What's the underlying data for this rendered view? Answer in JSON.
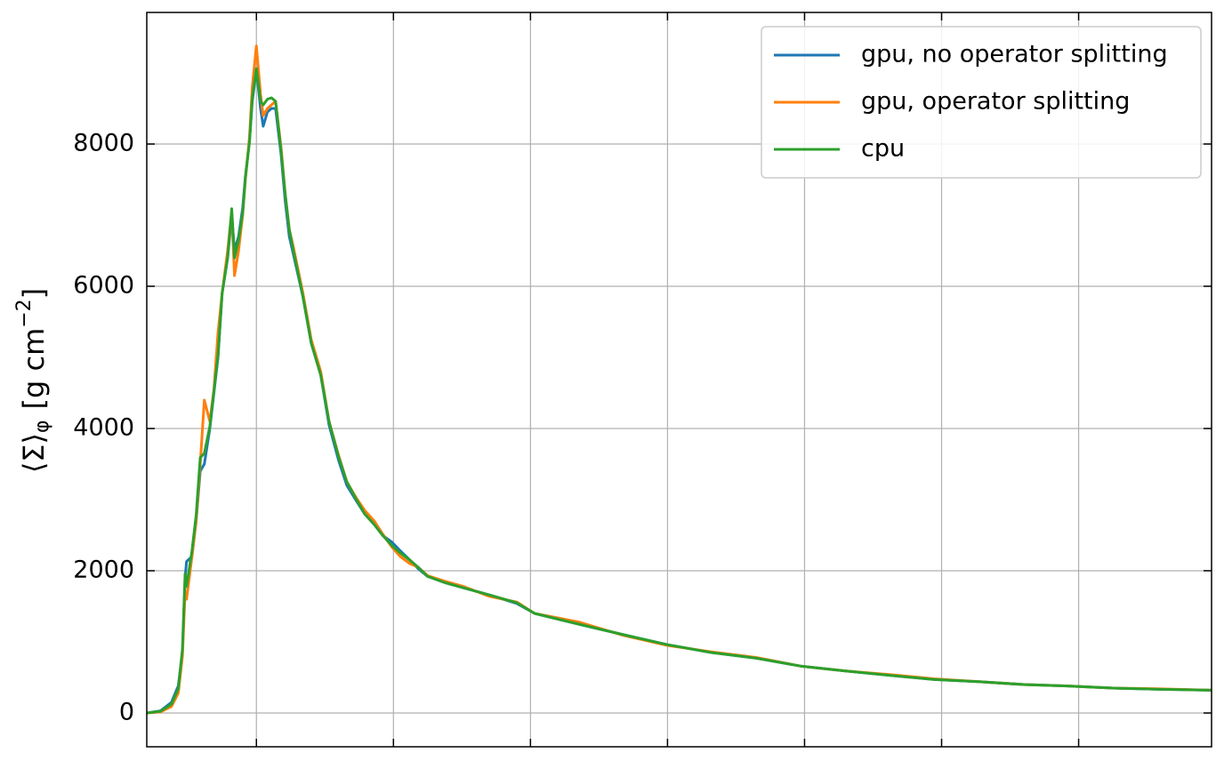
{
  "chart_data": {
    "type": "line",
    "ylabel": {
      "main": "⟨Σ⟩",
      "sub": "φ",
      "unit": "[g cm",
      "sup": "−2",
      "close": "]"
    },
    "x": [
      0.2,
      0.3,
      0.38,
      0.43,
      0.46,
      0.48,
      0.49,
      0.53,
      0.56,
      0.59,
      0.62,
      0.66,
      0.69,
      0.72,
      0.75,
      0.79,
      0.82,
      0.84,
      0.87,
      0.9,
      0.92,
      0.95,
      0.97,
      1.0,
      1.03,
      1.05,
      1.08,
      1.11,
      1.14,
      1.18,
      1.21,
      1.24,
      1.27,
      1.34,
      1.4,
      1.47,
      1.53,
      1.6,
      1.66,
      1.73,
      1.79,
      1.86,
      1.92,
      1.99,
      2.05,
      2.12,
      2.18,
      2.25,
      2.38,
      2.51,
      2.7,
      2.9,
      3.03,
      3.35,
      3.68,
      4.0,
      4.32,
      4.65,
      4.97,
      5.3,
      5.62,
      5.95,
      6.27,
      6.6,
      6.92,
      7.25,
      7.57,
      7.97
    ],
    "series": [
      {
        "name": "gpu, no operator splitting",
        "color": "#1f77b4",
        "values": [
          0,
          30,
          150,
          380,
          850,
          1900,
          2130,
          2200,
          2700,
          3400,
          3500,
          4000,
          4500,
          5000,
          5900,
          6400,
          7000,
          6500,
          6700,
          7100,
          7550,
          8050,
          8600,
          9050,
          8500,
          8250,
          8450,
          8500,
          8500,
          7850,
          7200,
          6700,
          6450,
          5850,
          5200,
          4750,
          4050,
          3550,
          3200,
          2980,
          2800,
          2650,
          2500,
          2400,
          2280,
          2150,
          2030,
          1920,
          1830,
          1760,
          1660,
          1540,
          1400,
          1250,
          1100,
          960,
          850,
          770,
          660,
          590,
          530,
          470,
          440,
          400,
          380,
          350,
          335,
          320
        ]
      },
      {
        "name": "gpu, operator splitting",
        "color": "#ff7f0e",
        "values": [
          0,
          15,
          90,
          280,
          800,
          1700,
          1600,
          2200,
          2700,
          3500,
          4400,
          4100,
          4550,
          5350,
          5900,
          6500,
          7050,
          6150,
          6500,
          7000,
          7500,
          8100,
          8800,
          9380,
          8700,
          8400,
          8500,
          8550,
          8600,
          7950,
          7300,
          6800,
          6550,
          5900,
          5250,
          4800,
          4100,
          3620,
          3250,
          3020,
          2850,
          2700,
          2520,
          2330,
          2200,
          2100,
          2050,
          1930,
          1850,
          1780,
          1640,
          1560,
          1400,
          1280,
          1090,
          950,
          860,
          780,
          660,
          590,
          540,
          480,
          440,
          400,
          380,
          350,
          340,
          320
        ]
      },
      {
        "name": "cpu",
        "color": "#2ca02c",
        "values": [
          0,
          25,
          125,
          340,
          900,
          1960,
          1780,
          2280,
          2780,
          3590,
          3650,
          4030,
          4530,
          5030,
          5900,
          6400,
          7090,
          6400,
          6650,
          7030,
          7530,
          8030,
          8650,
          9060,
          8600,
          8550,
          8630,
          8650,
          8600,
          7900,
          7300,
          6800,
          6500,
          5850,
          5200,
          4750,
          4100,
          3600,
          3250,
          3000,
          2800,
          2650,
          2500,
          2350,
          2250,
          2150,
          2050,
          1920,
          1830,
          1760,
          1660,
          1550,
          1400,
          1250,
          1100,
          960,
          850,
          770,
          660,
          590,
          530,
          470,
          440,
          400,
          380,
          350,
          335,
          320
        ]
      }
    ],
    "xlim": [
      0.2,
      7.97
    ],
    "xticks": [
      1,
      2,
      3,
      4,
      5,
      6,
      7
    ],
    "ylim": [
      -475,
      9850
    ],
    "yticks": [
      0,
      2000,
      4000,
      6000,
      8000
    ],
    "grid": true,
    "legend": "upper right"
  }
}
